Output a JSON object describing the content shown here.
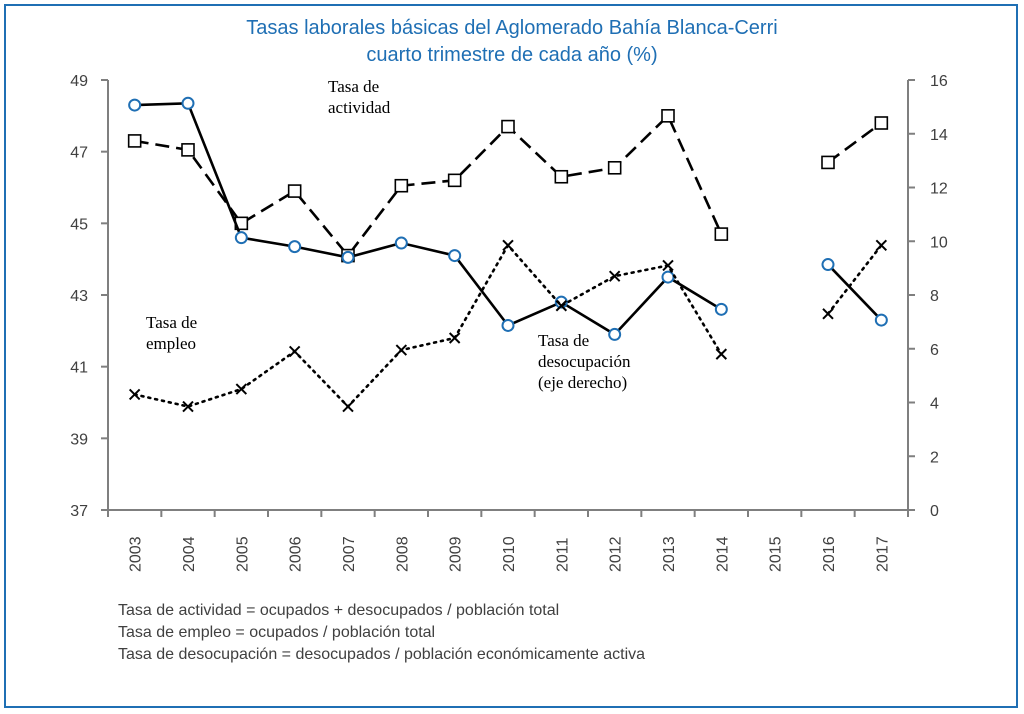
{
  "title_line1": "Tasas laborales básicas del Aglomerado Bahía Blanca-Cerri",
  "title_line2": "cuarto trimestre de cada año (%)",
  "colors": {
    "title": "#1f6fb4",
    "border": "#1f6fb4",
    "axis": "#7f7f7f",
    "marker_circle": "#1f6fb4"
  },
  "annotations": {
    "actividad": [
      "Tasa de",
      "actividad"
    ],
    "empleo": [
      "Tasa de",
      "empleo"
    ],
    "desocupacion": [
      "Tasa de",
      "desocupación",
      "(eje derecho)"
    ]
  },
  "notes": [
    "Tasa de actividad = ocupados + desocupados / población total",
    "Tasa de empleo = ocupados / población total",
    "Tasa de desocupación = desocupados / población económicamente activa"
  ],
  "chart_data": {
    "type": "line",
    "categories": [
      "2003",
      "2004",
      "2005",
      "2006",
      "2007",
      "2008",
      "2009",
      "2010",
      "2011",
      "2012",
      "2013",
      "2014",
      "2015",
      "2016",
      "2017"
    ],
    "y_left": {
      "min": 37,
      "max": 49,
      "ticks": [
        37,
        39,
        41,
        43,
        45,
        47,
        49
      ]
    },
    "y_right": {
      "min": 0,
      "max": 16,
      "ticks": [
        0,
        2,
        4,
        6,
        8,
        10,
        12,
        14,
        16
      ]
    },
    "grid": false,
    "series": [
      {
        "name": "Tasa de actividad",
        "axis": "left",
        "style": "dashed",
        "marker": "square",
        "values": [
          47.3,
          47.05,
          45.0,
          45.9,
          44.1,
          46.05,
          46.2,
          47.7,
          46.3,
          46.55,
          48.0,
          44.7,
          null,
          46.7,
          47.8
        ]
      },
      {
        "name": "Tasa de empleo",
        "axis": "left",
        "style": "solid",
        "marker": "circle",
        "values": [
          48.3,
          48.35,
          44.6,
          44.35,
          44.05,
          44.45,
          44.1,
          42.15,
          42.8,
          41.9,
          43.5,
          42.6,
          null,
          43.85,
          42.3
        ]
      },
      {
        "name": "Tasa de desocupación (eje derecho)",
        "axis": "right",
        "style": "dotted",
        "marker": "x",
        "values": [
          4.3,
          3.85,
          4.5,
          5.9,
          3.85,
          5.95,
          6.4,
          9.85,
          7.6,
          8.7,
          9.1,
          5.8,
          null,
          7.3,
          9.85
        ]
      }
    ]
  }
}
